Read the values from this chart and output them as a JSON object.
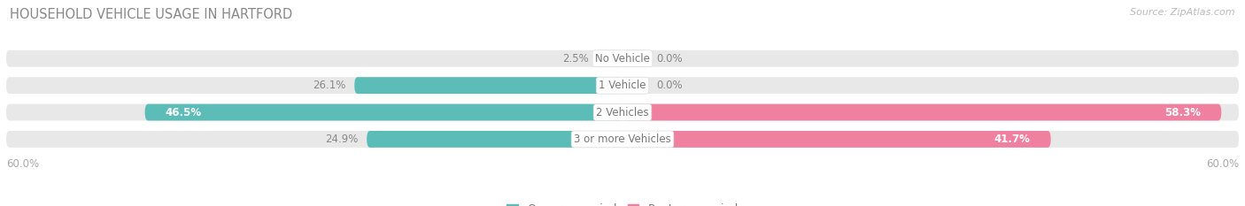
{
  "title": "HOUSEHOLD VEHICLE USAGE IN HARTFORD",
  "source": "Source: ZipAtlas.com",
  "categories": [
    "No Vehicle",
    "1 Vehicle",
    "2 Vehicles",
    "3 or more Vehicles"
  ],
  "owner_values": [
    2.5,
    26.1,
    46.5,
    24.9
  ],
  "renter_values": [
    0.0,
    0.0,
    58.3,
    41.7
  ],
  "owner_color": "#5bbcb8",
  "renter_color": "#f080a0",
  "bar_bg_color": "#e8e8e8",
  "bar_bg_outer_color": "#f5f5f5",
  "axis_max": 60.0,
  "bar_height": 0.62,
  "fig_bg_color": "#ffffff",
  "title_fontsize": 10.5,
  "label_fontsize": 8.5,
  "tick_fontsize": 8.5,
  "source_fontsize": 8,
  "legend_fontsize": 9,
  "category_fontsize": 8.5,
  "x_axis_label_left": "60.0%",
  "x_axis_label_right": "60.0%",
  "title_color": "#888888",
  "label_color_dark": "#888888",
  "label_color_light": "#ffffff"
}
